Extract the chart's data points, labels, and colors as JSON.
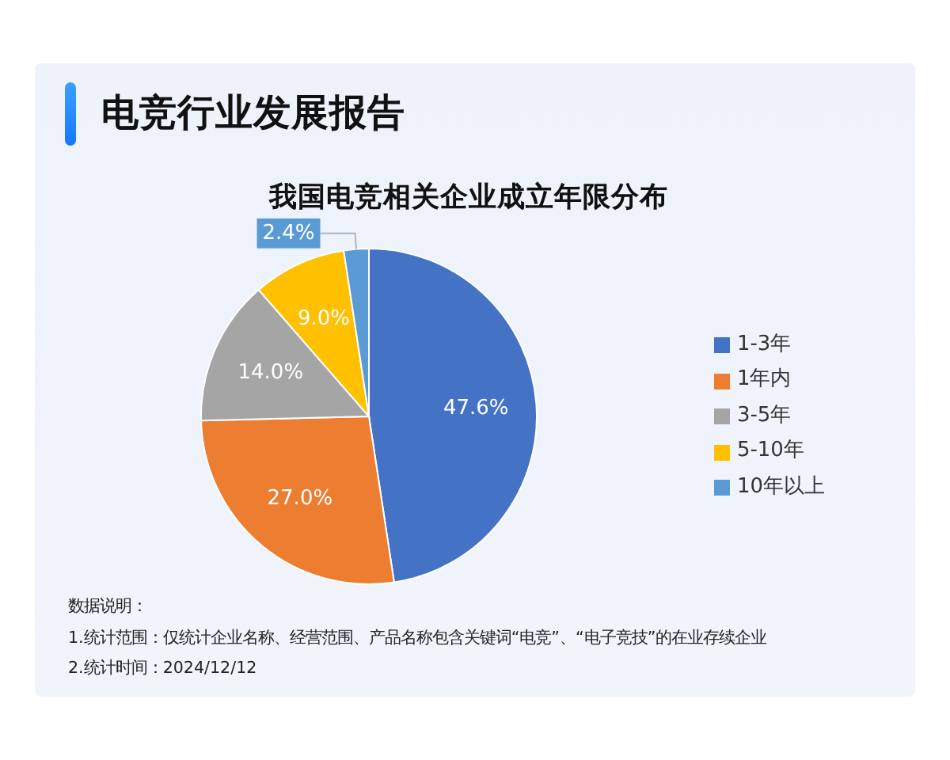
{
  "chart_data": {
    "type": "pie",
    "title": "电竞行业发展报告",
    "subtitle": "我国电竞相关企业成立年限分布",
    "categories": [
      "1-3年",
      "1年内",
      "3-5年",
      "5-10年",
      "10年以上"
    ],
    "values": [
      47.6,
      27.0,
      14.0,
      9.0,
      2.4
    ],
    "colors": [
      "#4472c4",
      "#ed7d31",
      "#a5a5a5",
      "#ffc000",
      "#5b9bd5"
    ],
    "value_labels": [
      "47.6%",
      "27.0%",
      "14.0%",
      "9.0%",
      "2.4%"
    ],
    "legend": "right",
    "annotations": [
      "数据说明：",
      "1.统计范围：仅统计企业名称、经营范围、产品名称包含关键词“电竞”、“电子竞技”的在业存续企业",
      "2.统计时间：2024/12/12"
    ]
  }
}
